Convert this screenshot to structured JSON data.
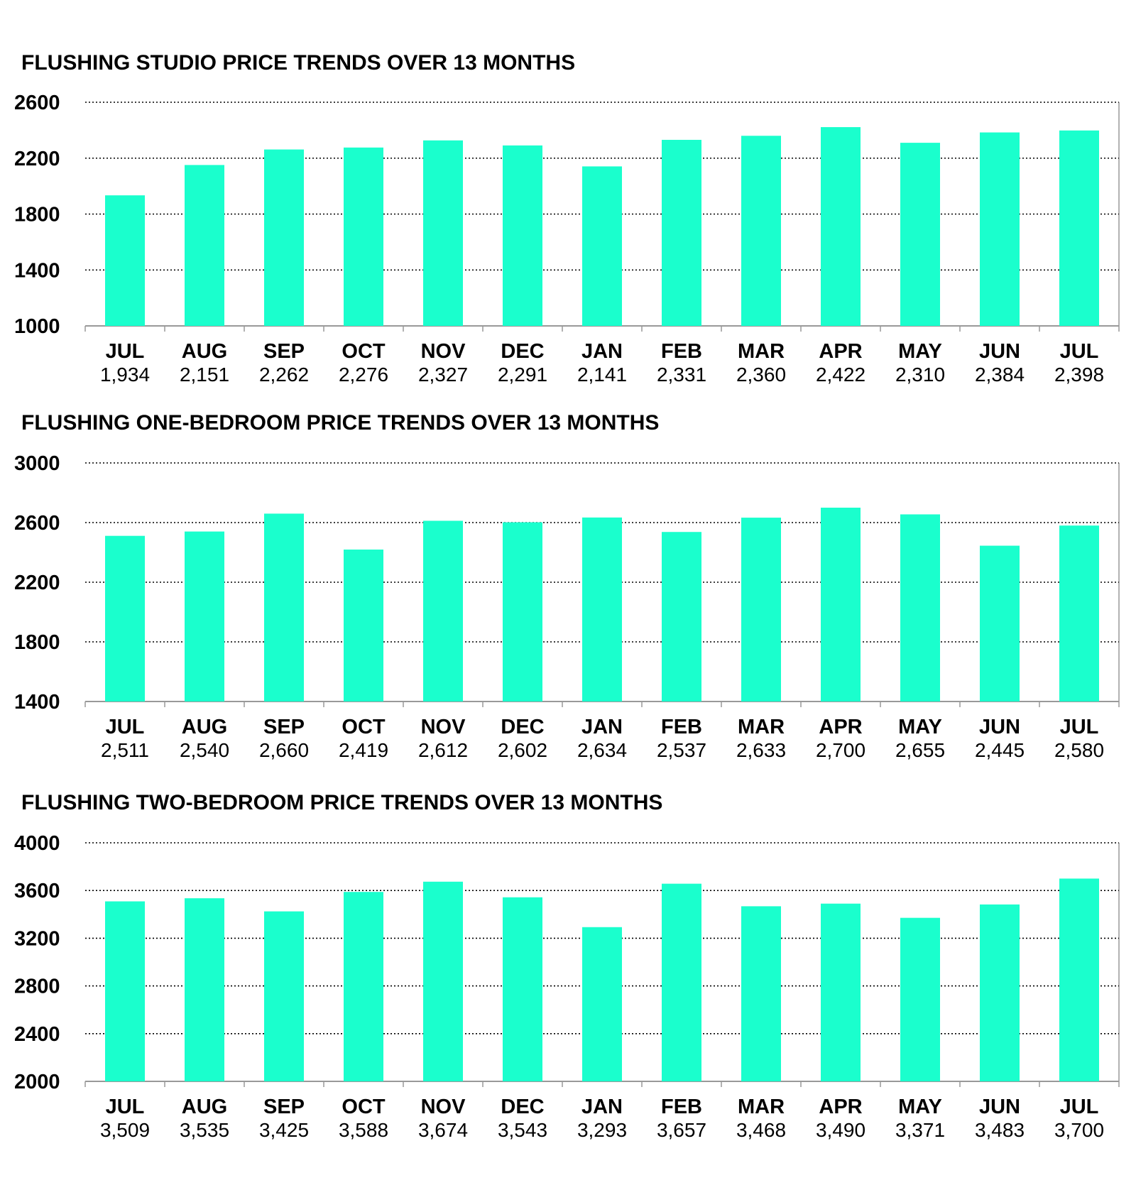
{
  "colors": {
    "bar": "#1affcd",
    "grid": "#000000",
    "axis": "#999999"
  },
  "chart_data": [
    {
      "type": "bar",
      "title": "FLUSHING STUDIO PRICE TRENDS OVER 13 MONTHS",
      "categories": [
        "JUL",
        "AUG",
        "SEP",
        "OCT",
        "NOV",
        "DEC",
        "JAN",
        "FEB",
        "MAR",
        "APR",
        "MAY",
        "JUN",
        "JUL"
      ],
      "value_labels": [
        "1,934",
        "2,151",
        "2,262",
        "2,276",
        "2,327",
        "2,291",
        "2,141",
        "2,331",
        "2,360",
        "2,422",
        "2,310",
        "2,384",
        "2,398"
      ],
      "values": [
        1934,
        2151,
        2262,
        2276,
        2327,
        2291,
        2141,
        2331,
        2360,
        2422,
        2310,
        2384,
        2398
      ],
      "ylim": [
        1000,
        2600
      ],
      "yticks": [
        1000,
        1400,
        1800,
        2200,
        2600
      ],
      "grid": true
    },
    {
      "type": "bar",
      "title": "FLUSHING ONE-BEDROOM PRICE TRENDS OVER 13 MONTHS",
      "categories": [
        "JUL",
        "AUG",
        "SEP",
        "OCT",
        "NOV",
        "DEC",
        "JAN",
        "FEB",
        "MAR",
        "APR",
        "MAY",
        "JUN",
        "JUL"
      ],
      "value_labels": [
        "2,511",
        "2,540",
        "2,660",
        "2,419",
        "2,612",
        "2,602",
        "2,634",
        "2,537",
        "2,633",
        "2,700",
        "2,655",
        "2,445",
        "2,580"
      ],
      "values": [
        2511,
        2540,
        2660,
        2419,
        2612,
        2602,
        2634,
        2537,
        2633,
        2700,
        2655,
        2445,
        2580
      ],
      "ylim": [
        1400,
        3000
      ],
      "yticks": [
        1400,
        1800,
        2200,
        2600,
        3000
      ],
      "grid": true
    },
    {
      "type": "bar",
      "title": "FLUSHING TWO-BEDROOM PRICE TRENDS OVER 13 MONTHS",
      "categories": [
        "JUL",
        "AUG",
        "SEP",
        "OCT",
        "NOV",
        "DEC",
        "JAN",
        "FEB",
        "MAR",
        "APR",
        "MAY",
        "JUN",
        "JUL"
      ],
      "value_labels": [
        "3,509",
        "3,535",
        "3,425",
        "3,588",
        "3,674",
        "3,543",
        "3,293",
        "3,657",
        "3,468",
        "3,490",
        "3,371",
        "3,483",
        "3,700"
      ],
      "values": [
        3509,
        3535,
        3425,
        3588,
        3674,
        3543,
        3293,
        3657,
        3468,
        3490,
        3371,
        3483,
        3700
      ],
      "ylim": [
        2000,
        4000
      ],
      "yticks": [
        2000,
        2400,
        2800,
        3200,
        3600,
        4000
      ],
      "grid": true
    }
  ]
}
